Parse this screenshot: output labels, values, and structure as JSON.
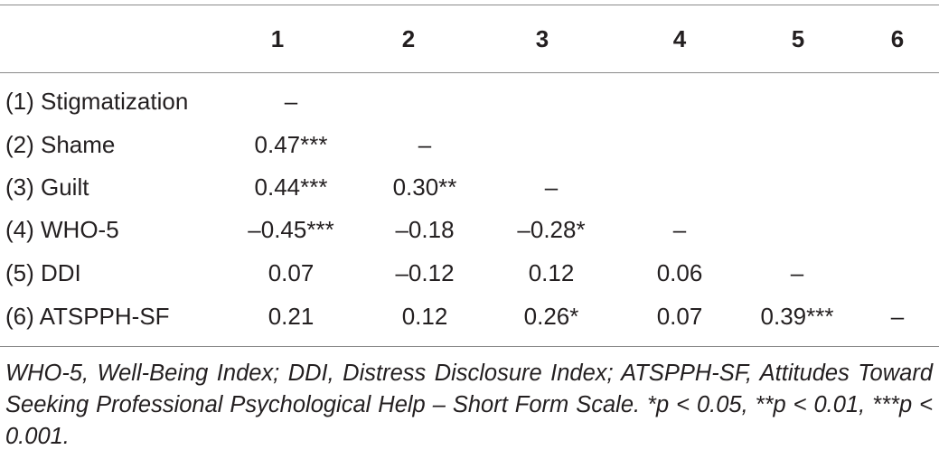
{
  "table": {
    "header": [
      "1",
      "2",
      "3",
      "4",
      "5",
      "6"
    ],
    "rows": [
      {
        "label": "(1) Stigmatization",
        "cells": [
          "–"
        ]
      },
      {
        "label": "(2) Shame",
        "cells": [
          "0.47***",
          "–"
        ]
      },
      {
        "label": "(3) Guilt",
        "cells": [
          "0.44***",
          "0.30**",
          "–"
        ]
      },
      {
        "label": "(4) WHO-5",
        "cells": [
          "–0.45***",
          "–0.18",
          "–0.28*",
          "–"
        ]
      },
      {
        "label": "(5) DDI",
        "cells": [
          "0.07",
          "–0.12",
          "0.12",
          "0.06",
          "–"
        ]
      },
      {
        "label": "(6) ATSPPH-SF",
        "cells": [
          "0.21",
          "0.12",
          "0.26*",
          "0.07",
          "0.39***",
          "–"
        ]
      }
    ],
    "footnote": "WHO-5, Well-Being Index; DDI, Distress Disclosure Index; ATSPPH-SF, Attitudes Toward Seeking Professional Psychological Help – Short Form Scale. *p < 0.05, **p < 0.01, ***p < 0.001."
  }
}
